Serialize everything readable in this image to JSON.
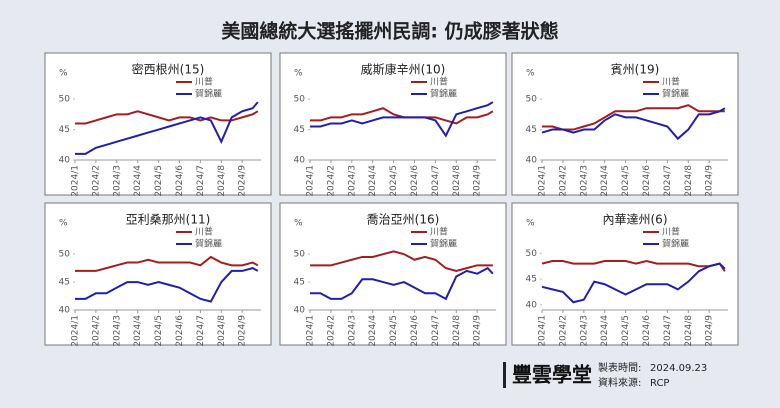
{
  "title": "美國總統大選搖擺州民調: 仍成膠著狀態",
  "footer": {
    "brand": "豐雲學堂",
    "made_label": "製表時間:",
    "made_value": "2024.09.23",
    "source_label": "資料來源:",
    "source_value": "RCP"
  },
  "chart_data": [
    {
      "type": "line",
      "title": "密西根州(15)",
      "y_label": "%",
      "x": [
        1,
        1.5,
        2,
        2.5,
        3,
        3.5,
        4,
        4.5,
        5,
        5.5,
        6,
        6.5,
        7,
        7.5,
        8,
        8.5,
        9,
        9.5,
        9.75
      ],
      "xlim": [
        1,
        9.9
      ],
      "xticks": [
        {
          "value": 1,
          "label": "2024/1"
        },
        {
          "value": 2,
          "label": "2024/2"
        },
        {
          "value": 3,
          "label": "2024/3"
        },
        {
          "value": 4,
          "label": "2024/4"
        },
        {
          "value": 5,
          "label": "2024/5"
        },
        {
          "value": 6,
          "label": "2024/6"
        },
        {
          "value": 7,
          "label": "2024/7"
        },
        {
          "value": 8,
          "label": "2024/8"
        },
        {
          "value": 9,
          "label": "2024/9"
        }
      ],
      "ylim": [
        40,
        51
      ],
      "yticks": [
        40,
        45,
        50
      ],
      "series": [
        {
          "name": "川普",
          "color": "#a31f1f",
          "values": [
            46,
            46,
            46.5,
            47,
            47.5,
            47.5,
            48,
            47.5,
            47,
            46.5,
            47,
            47,
            46.5,
            47,
            46.5,
            46.5,
            47,
            47.5,
            48
          ]
        },
        {
          "name": "賀錦麗",
          "color": "#1f1fb0",
          "values": [
            41,
            41,
            42,
            42.5,
            43,
            43.5,
            44,
            44.5,
            45,
            45.5,
            46,
            46.5,
            47,
            46.5,
            43,
            47,
            48,
            48.5,
            49.5
          ]
        }
      ]
    },
    {
      "type": "line",
      "title": "威斯康辛州(10)",
      "y_label": "%",
      "x": [
        1,
        1.5,
        2,
        2.5,
        3,
        3.5,
        4,
        4.5,
        5,
        5.5,
        6,
        6.5,
        7,
        7.5,
        8,
        8.5,
        9,
        9.5,
        9.75
      ],
      "xlim": [
        1,
        9.9
      ],
      "xticks": [
        {
          "value": 1,
          "label": "2024/1"
        },
        {
          "value": 2,
          "label": "2024/2"
        },
        {
          "value": 3,
          "label": "2024/3"
        },
        {
          "value": 4,
          "label": "2024/4"
        },
        {
          "value": 5,
          "label": "2024/5"
        },
        {
          "value": 6,
          "label": "2024/6"
        },
        {
          "value": 7,
          "label": "2024/7"
        },
        {
          "value": 8,
          "label": "2024/8"
        },
        {
          "value": 9,
          "label": "2024/9"
        }
      ],
      "ylim": [
        40,
        51
      ],
      "yticks": [
        40,
        45,
        50
      ],
      "series": [
        {
          "name": "川普",
          "color": "#a31f1f",
          "values": [
            46.5,
            46.5,
            47,
            47,
            47.5,
            47.5,
            48,
            48.5,
            47.5,
            47,
            47,
            47,
            47,
            46.5,
            46,
            47,
            47,
            47.5,
            48
          ]
        },
        {
          "name": "賀錦麗",
          "color": "#1f1fb0",
          "values": [
            45.5,
            45.5,
            46,
            46,
            46.5,
            46,
            46.5,
            47,
            47,
            47,
            47,
            47,
            46.5,
            44,
            47.5,
            48,
            48.5,
            49,
            49.5
          ]
        }
      ]
    },
    {
      "type": "line",
      "title": "賓州(19)",
      "y_label": "%",
      "x": [
        1,
        1.5,
        2,
        2.5,
        3,
        3.5,
        4,
        4.5,
        5,
        5.5,
        6,
        6.5,
        7,
        7.5,
        8,
        8.5,
        9,
        9.5,
        9.75
      ],
      "xlim": [
        1,
        9.9
      ],
      "xticks": [
        {
          "value": 1,
          "label": "2024/1"
        },
        {
          "value": 2,
          "label": "2024/2"
        },
        {
          "value": 3,
          "label": "2024/3"
        },
        {
          "value": 4,
          "label": "2024/4"
        },
        {
          "value": 5,
          "label": "2024/5"
        },
        {
          "value": 6,
          "label": "2024/6"
        },
        {
          "value": 7,
          "label": "2024/7"
        },
        {
          "value": 8,
          "label": "2024/8"
        },
        {
          "value": 9,
          "label": "2024/9"
        }
      ],
      "ylim": [
        40,
        51
      ],
      "yticks": [
        40,
        45,
        50
      ],
      "series": [
        {
          "name": "川普",
          "color": "#a31f1f",
          "values": [
            45.5,
            45.5,
            45,
            45,
            45.5,
            46,
            47,
            48,
            48,
            48,
            48.5,
            48.5,
            48.5,
            48.5,
            49,
            48,
            48,
            48,
            48
          ]
        },
        {
          "name": "賀錦麗",
          "color": "#1f1fb0",
          "values": [
            44.5,
            45,
            45,
            44.5,
            45,
            45,
            46.5,
            47.5,
            47,
            47,
            46.5,
            46,
            45.5,
            43.5,
            45,
            47.5,
            47.5,
            48,
            48.5
          ]
        }
      ]
    },
    {
      "type": "line",
      "title": "亞利桑那州(11)",
      "y_label": "%",
      "x": [
        1,
        1.5,
        2,
        2.5,
        3,
        3.5,
        4,
        4.5,
        5,
        5.5,
        6,
        6.5,
        7,
        7.5,
        8,
        8.5,
        9,
        9.5,
        9.75
      ],
      "xlim": [
        1,
        9.9
      ],
      "xticks": [
        {
          "value": 1,
          "label": "2024/1"
        },
        {
          "value": 2,
          "label": "2024/2"
        },
        {
          "value": 3,
          "label": "2024/3"
        },
        {
          "value": 4,
          "label": "2024/4"
        },
        {
          "value": 5,
          "label": "2024/5"
        },
        {
          "value": 6,
          "label": "2024/6"
        },
        {
          "value": 7,
          "label": "2024/7"
        },
        {
          "value": 8,
          "label": "2024/8"
        },
        {
          "value": 9,
          "label": "2024/9"
        }
      ],
      "ylim": [
        40,
        52
      ],
      "yticks": [
        40,
        45,
        50
      ],
      "series": [
        {
          "name": "川普",
          "color": "#a31f1f",
          "values": [
            47,
            47,
            47,
            47.5,
            48,
            48.5,
            48.5,
            49,
            48.5,
            48.5,
            48.5,
            48.5,
            48,
            49.5,
            48.5,
            48,
            48,
            48.5,
            48
          ]
        },
        {
          "name": "賀錦麗",
          "color": "#1f1fb0",
          "values": [
            42,
            42,
            43,
            43,
            44,
            45,
            45,
            44.5,
            45,
            44.5,
            44,
            43,
            42,
            41.5,
            45,
            47,
            47,
            47.5,
            47
          ]
        }
      ]
    },
    {
      "type": "line",
      "title": "喬治亞州(16)",
      "y_label": "%",
      "x": [
        1,
        1.5,
        2,
        2.5,
        3,
        3.5,
        4,
        4.5,
        5,
        5.5,
        6,
        6.5,
        7,
        7.5,
        8,
        8.5,
        9,
        9.5,
        9.75
      ],
      "xlim": [
        1,
        9.9
      ],
      "xticks": [
        {
          "value": 1,
          "label": "2024/1"
        },
        {
          "value": 2,
          "label": "2024/2"
        },
        {
          "value": 3,
          "label": "2024/3"
        },
        {
          "value": 4,
          "label": "2024/4"
        },
        {
          "value": 5,
          "label": "2024/5"
        },
        {
          "value": 6,
          "label": "2024/6"
        },
        {
          "value": 7,
          "label": "2024/7"
        },
        {
          "value": 8,
          "label": "2024/8"
        },
        {
          "value": 9,
          "label": "2024/9"
        }
      ],
      "ylim": [
        40,
        52
      ],
      "yticks": [
        40,
        45,
        50
      ],
      "series": [
        {
          "name": "川普",
          "color": "#a31f1f",
          "values": [
            48,
            48,
            48,
            48.5,
            49,
            49.5,
            49.5,
            50,
            50.5,
            50,
            49,
            49.5,
            49,
            47.5,
            47,
            47.5,
            48,
            48,
            48
          ]
        },
        {
          "name": "賀錦麗",
          "color": "#1f1fb0",
          "values": [
            43,
            43,
            42,
            42,
            43,
            45.5,
            45.5,
            45,
            44.5,
            45,
            44,
            43,
            43,
            42,
            46,
            47,
            46.5,
            47.5,
            46.5
          ]
        }
      ]
    },
    {
      "type": "line",
      "title": "內華達州(6)",
      "y_label": "%",
      "x": [
        1,
        1.5,
        2,
        2.5,
        3,
        3.5,
        4,
        4.5,
        5,
        5.5,
        6,
        6.5,
        7,
        7.5,
        8,
        8.5,
        9,
        9.5,
        9.75
      ],
      "xlim": [
        1,
        9.9
      ],
      "xticks": [
        {
          "value": 1,
          "label": "2024/1"
        },
        {
          "value": 2,
          "label": "2024/2"
        },
        {
          "value": 3,
          "label": "2024/3"
        },
        {
          "value": 4,
          "label": "2024/4"
        },
        {
          "value": 5,
          "label": "2024/5"
        },
        {
          "value": 6,
          "label": "2024/6"
        },
        {
          "value": 7,
          "label": "2024/7"
        },
        {
          "value": 8,
          "label": "2024/8"
        },
        {
          "value": 9,
          "label": "2024/9"
        }
      ],
      "ylim": [
        39,
        52
      ],
      "yticks": [
        40,
        45,
        50
      ],
      "series": [
        {
          "name": "川普",
          "color": "#a31f1f",
          "values": [
            48,
            48.5,
            48.5,
            48,
            48,
            48,
            48.5,
            48.5,
            48.5,
            48,
            48.5,
            48,
            48,
            48,
            48,
            47.5,
            47.5,
            48,
            46.5
          ]
        },
        {
          "name": "賀錦麗",
          "color": "#1f1fb0",
          "values": [
            43.5,
            43,
            42.5,
            40.5,
            41,
            44.5,
            44,
            43,
            42,
            43,
            44,
            44,
            44,
            43,
            44.5,
            46.5,
            47.5,
            48,
            47
          ]
        }
      ]
    }
  ]
}
